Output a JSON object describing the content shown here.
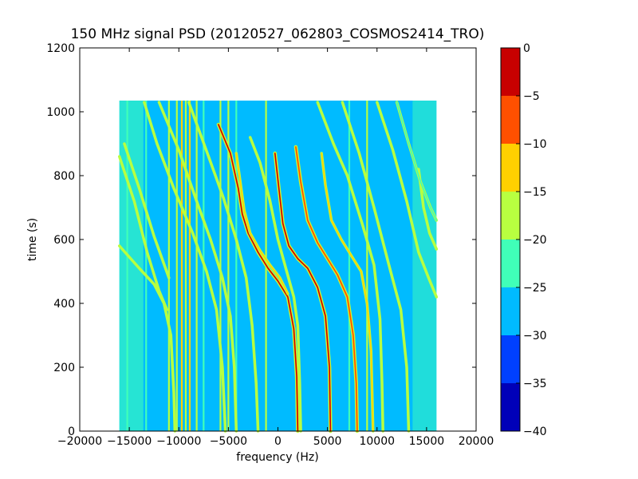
{
  "chart_data": {
    "type": "heatmap",
    "title": "150 MHz signal PSD (20120527_062803_COSMOS2414_TRO)",
    "xlabel": "frequency (Hz)",
    "ylabel": "time (s)",
    "xlim": [
      -20000,
      20000
    ],
    "ylim": [
      0,
      1200
    ],
    "xticks": [
      -20000,
      -15000,
      -10000,
      -5000,
      0,
      5000,
      10000,
      15000,
      20000
    ],
    "yticks": [
      0,
      200,
      400,
      600,
      800,
      1000,
      1200
    ],
    "grid": false,
    "data_extent": {
      "x": [
        -16000,
        16000
      ],
      "y": [
        0,
        1035
      ]
    },
    "background_level": -27,
    "colorbar": {
      "ticks": [
        0,
        -5,
        -10,
        -15,
        -20,
        -25,
        -30,
        -35,
        -40
      ],
      "range": [
        -40,
        0
      ],
      "colors": [
        "#0000b8",
        "#0040ff",
        "#00bbff",
        "#40ffb8",
        "#b8ff40",
        "#ffd000",
        "#ff5000",
        "#c80000"
      ]
    },
    "vertical_lines": [
      {
        "x": -15200,
        "level": -22
      },
      {
        "x": -13300,
        "level": -22
      },
      {
        "x": -11000,
        "level": -20
      },
      {
        "x": -10200,
        "level": -16
      },
      {
        "x": -9700,
        "level": -12
      },
      {
        "x": -9300,
        "level": -20
      },
      {
        "x": -8900,
        "level": -15
      },
      {
        "x": -8200,
        "level": -20
      },
      {
        "x": -7500,
        "level": -22
      },
      {
        "x": -5800,
        "level": -20
      },
      {
        "x": -5000,
        "level": -18
      },
      {
        "x": -4200,
        "level": -22
      },
      {
        "x": -1200,
        "level": -20
      },
      {
        "x": 7200,
        "level": -22
      },
      {
        "x": 9000,
        "level": -20
      }
    ],
    "tracks": [
      {
        "points": [
          [
            -16000,
            580
          ],
          [
            -14000,
            510
          ],
          [
            -12500,
            460
          ],
          [
            -11500,
            400
          ],
          [
            -10800,
            300
          ],
          [
            -10500,
            120
          ],
          [
            -10400,
            0
          ]
        ],
        "level": -18
      },
      {
        "points": [
          [
            -15500,
            900
          ],
          [
            -14000,
            760
          ],
          [
            -12500,
            610
          ],
          [
            -11000,
            480
          ]
        ],
        "level": -20
      },
      {
        "points": [
          [
            -16000,
            860
          ],
          [
            -14500,
            720
          ],
          [
            -13200,
            560
          ],
          [
            -12000,
            440
          ],
          [
            -11200,
            380
          ]
        ],
        "level": -20
      },
      {
        "points": [
          [
            -12000,
            1030
          ],
          [
            -10000,
            880
          ],
          [
            -8200,
            720
          ],
          [
            -6800,
            600
          ],
          [
            -5600,
            480
          ],
          [
            -4800,
            360
          ],
          [
            -4400,
            200
          ],
          [
            -4200,
            0
          ]
        ],
        "level": -18
      },
      {
        "points": [
          [
            -9000,
            1030
          ],
          [
            -7000,
            860
          ],
          [
            -5500,
            730
          ],
          [
            -4200,
            600
          ],
          [
            -3200,
            480
          ],
          [
            -2600,
            330
          ],
          [
            -2200,
            150
          ],
          [
            -2000,
            0
          ]
        ],
        "level": -18
      },
      {
        "points": [
          [
            -6000,
            960
          ],
          [
            -4800,
            870
          ],
          [
            -4000,
            760
          ],
          [
            -3600,
            680
          ],
          [
            -3000,
            620
          ],
          [
            -2000,
            560
          ],
          [
            -1000,
            510
          ],
          [
            0,
            470
          ],
          [
            1000,
            420
          ],
          [
            1600,
            320
          ],
          [
            1900,
            170
          ],
          [
            2000,
            0
          ]
        ],
        "level": -5
      },
      {
        "points": [
          [
            -4200,
            870
          ],
          [
            -3800,
            780
          ],
          [
            -3400,
            690
          ],
          [
            -2800,
            620
          ],
          [
            -1800,
            565
          ],
          [
            -800,
            520
          ],
          [
            200,
            480
          ],
          [
            1000,
            430
          ]
        ],
        "level": -12
      },
      {
        "points": [
          [
            -2800,
            920
          ],
          [
            -1800,
            840
          ],
          [
            -800,
            720
          ],
          [
            0,
            600
          ],
          [
            800,
            510
          ],
          [
            1600,
            420
          ],
          [
            2000,
            330
          ],
          [
            2200,
            150
          ],
          [
            2300,
            0
          ]
        ],
        "level": -18
      },
      {
        "points": [
          [
            -300,
            870
          ],
          [
            100,
            760
          ],
          [
            500,
            650
          ],
          [
            1100,
            580
          ],
          [
            2000,
            540
          ],
          [
            3000,
            510
          ],
          [
            4000,
            450
          ],
          [
            4800,
            360
          ],
          [
            5200,
            200
          ],
          [
            5300,
            0
          ]
        ],
        "level": -5
      },
      {
        "points": [
          [
            1800,
            890
          ],
          [
            2300,
            780
          ],
          [
            3000,
            660
          ],
          [
            4000,
            590
          ],
          [
            5000,
            540
          ],
          [
            6000,
            490
          ],
          [
            7000,
            420
          ],
          [
            7600,
            300
          ],
          [
            7900,
            150
          ],
          [
            8000,
            0
          ]
        ],
        "level": -8
      },
      {
        "points": [
          [
            4400,
            870
          ],
          [
            4800,
            770
          ],
          [
            5400,
            660
          ],
          [
            6400,
            600
          ],
          [
            7400,
            550
          ],
          [
            8400,
            500
          ],
          [
            9000,
            400
          ],
          [
            9400,
            250
          ],
          [
            9600,
            0
          ]
        ],
        "level": -12
      },
      {
        "points": [
          [
            4000,
            1030
          ],
          [
            5600,
            900
          ],
          [
            7000,
            800
          ],
          [
            8500,
            650
          ],
          [
            9700,
            520
          ],
          [
            10300,
            350
          ],
          [
            10500,
            150
          ],
          [
            10600,
            0
          ]
        ],
        "level": -18
      },
      {
        "points": [
          [
            6500,
            1030
          ],
          [
            8200,
            870
          ],
          [
            9700,
            700
          ],
          [
            11200,
            520
          ],
          [
            12400,
            380
          ],
          [
            13000,
            200
          ],
          [
            13200,
            0
          ]
        ],
        "level": -20
      },
      {
        "points": [
          [
            10000,
            1030
          ],
          [
            11600,
            880
          ],
          [
            13000,
            720
          ],
          [
            14200,
            560
          ],
          [
            15200,
            480
          ],
          [
            16000,
            420
          ]
        ],
        "level": -20
      },
      {
        "points": [
          [
            14200,
            820
          ],
          [
            14700,
            700
          ],
          [
            15300,
            620
          ],
          [
            16000,
            570
          ]
        ],
        "level": -16
      },
      {
        "points": [
          [
            -13500,
            1030
          ],
          [
            -12200,
            900
          ],
          [
            -10500,
            760
          ],
          [
            -8600,
            620
          ],
          [
            -7200,
            500
          ],
          [
            -6200,
            380
          ],
          [
            -5600,
            200
          ],
          [
            -5300,
            0
          ]
        ],
        "level": -20
      },
      {
        "points": [
          [
            12000,
            1030
          ],
          [
            13200,
            900
          ],
          [
            14400,
            780
          ],
          [
            15400,
            700
          ],
          [
            16000,
            660
          ]
        ],
        "level": -22
      }
    ]
  }
}
